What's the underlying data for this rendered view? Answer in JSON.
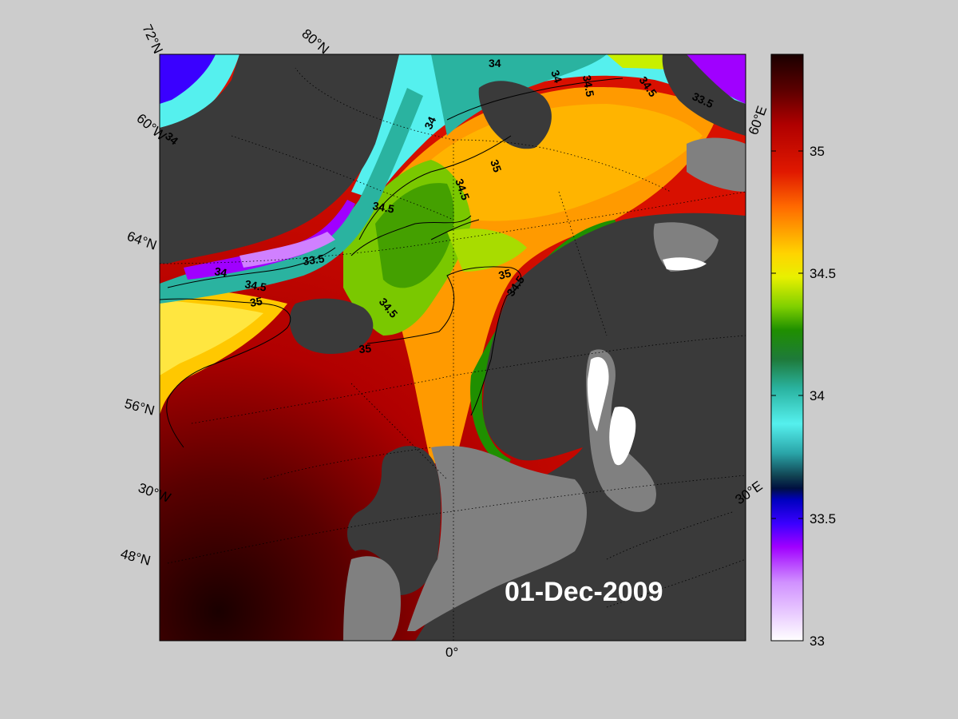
{
  "map": {
    "date_label": "01-Dec-2009",
    "lon_labels": [
      "0°",
      "30°E",
      "60°E",
      "30°W",
      "60°W"
    ],
    "lat_labels": [
      "72°N",
      "80°N",
      "64°N",
      "56°N",
      "48°N"
    ],
    "contour_labels": [
      "34",
      "34",
      "34.5",
      "34.5",
      "34",
      "35",
      "34.5",
      "34.5",
      "33.5",
      "34",
      "34.5",
      "35",
      "35",
      "34.5",
      "34.5",
      "35",
      "33.5",
      "34"
    ]
  },
  "colorbar": {
    "min": 33,
    "max": 35.4,
    "ticks": [
      "35",
      "34.5",
      "34",
      "33.5",
      "33"
    ],
    "colors": {
      "top": "#1a0000",
      "dark_red": "#8a0000",
      "red": "#d40000",
      "orange": "#ff7a00",
      "yellow": "#ffee00",
      "green": "#1f8f00",
      "teal": "#2ab3a0",
      "cyan": "#55f0ee",
      "blue": "#0a00ff",
      "purple": "#a000ff",
      "white": "#ffffff"
    }
  }
}
